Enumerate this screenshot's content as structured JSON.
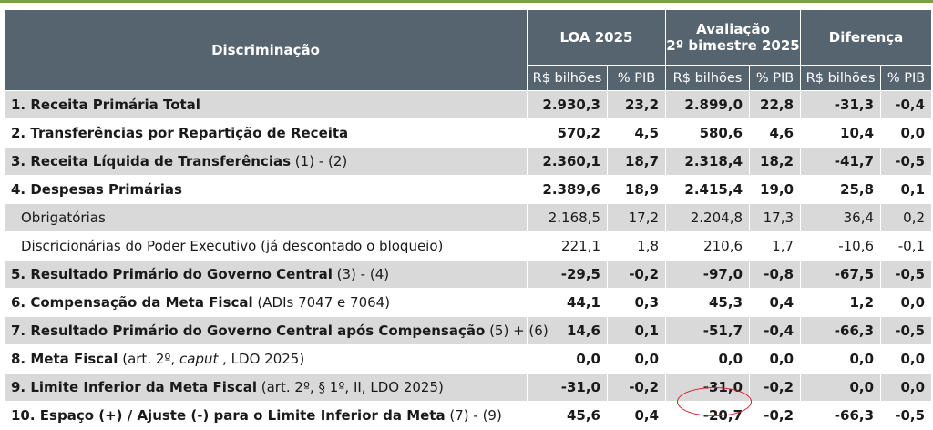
{
  "header": {
    "discriminacao": "Discriminação",
    "loa": "LOA 2025",
    "avaliacao_l1": "Avaliação",
    "avaliacao_l2": "2º bimestre 2025",
    "diferenca": "Diferença",
    "sub": [
      "R$ bilhões",
      "% PIB",
      "R$ bilhões",
      "% PIB",
      "R$ bilhões",
      "% PIB"
    ]
  },
  "rows": [
    {
      "label": "1. Receita Primária Total",
      "suffix": "",
      "values": [
        "2.930,3",
        "23,2",
        "2.899,0",
        "22,8",
        "-31,3",
        "-0,4"
      ]
    },
    {
      "label": "2. Transferências por Repartição de Receita",
      "suffix": "",
      "values": [
        "570,2",
        "4,5",
        "580,6",
        "4,6",
        "10,4",
        "0,0"
      ]
    },
    {
      "label": "3. Receita Líquida de Transferências",
      "suffix": " (1) - (2)",
      "values": [
        "2.360,1",
        "18,7",
        "2.318,4",
        "18,2",
        "-41,7",
        "-0,5"
      ]
    },
    {
      "label": "4. Despesas Primárias",
      "suffix": "",
      "values": [
        "2.389,6",
        "18,9",
        "2.415,4",
        "19,0",
        "25,8",
        "0,1"
      ]
    },
    {
      "label": "Obrigatórias",
      "suffix": "",
      "values": [
        "2.168,5",
        "17,2",
        "2.204,8",
        "17,3",
        "36,4",
        "0,2"
      ]
    },
    {
      "label": "Discricionárias do Poder Executivo (já descontado o bloqueio)",
      "suffix": "",
      "values": [
        "221,1",
        "1,8",
        "210,6",
        "1,7",
        "-10,6",
        "-0,1"
      ]
    },
    {
      "label": "5. Resultado Primário do Governo Central",
      "suffix": " (3) - (4)",
      "values": [
        "-29,5",
        "-0,2",
        "-97,0",
        "-0,8",
        "-67,5",
        "-0,5"
      ]
    },
    {
      "label": "6. Compensação da Meta Fiscal",
      "suffix": " (ADIs 7047 e 7064)",
      "values": [
        "44,1",
        "0,3",
        "45,3",
        "0,4",
        "1,2",
        "0,0"
      ]
    },
    {
      "label": "7. Resultado Primário do Governo Central após Compensação",
      "suffix": " (5) + (6)",
      "values": [
        "14,6",
        "0,1",
        "-51,7",
        "-0,4",
        "-66,3",
        "-0,5"
      ]
    },
    {
      "label": "8. Meta Fiscal",
      "suffix_a": " (art. 2º, ",
      "suffix_italic": "caput",
      "suffix_b": " , LDO 2025)",
      "values": [
        "0,0",
        "0,0",
        "0,0",
        "0,0",
        "0,0",
        "0,0"
      ]
    },
    {
      "label": "9. Limite Inferior da Meta Fiscal",
      "suffix": " (art. 2º, § 1º, II, LDO 2025)",
      "values": [
        "-31,0",
        "-0,2",
        "-31,0",
        "-0,2",
        "0,0",
        "0,0"
      ]
    },
    {
      "label": "10. Espaço (+) / Ajuste (-) para o Limite Inferior da Meta",
      "suffix": " (7) - (9)",
      "values": [
        "45,6",
        "0,4",
        "-20,7",
        "-0,2",
        "-66,3",
        "-0,5"
      ]
    }
  ],
  "colors": {
    "header_bg": "#566470",
    "stripe": "#d9d9d9",
    "accent_line": "#79a042",
    "highlight_circle": "#d61f2b"
  }
}
